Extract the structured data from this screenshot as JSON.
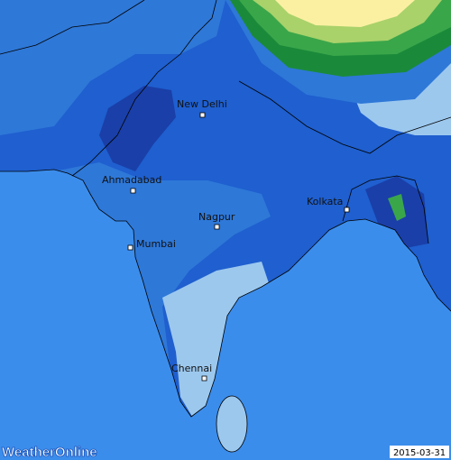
{
  "map": {
    "cities": [
      {
        "name": "New Delhi"
      },
      {
        "name": "Ahmadabad"
      },
      {
        "name": "Nagpur"
      },
      {
        "name": "Mumbai"
      },
      {
        "name": "Kolkata"
      },
      {
        "name": "Chennai"
      }
    ],
    "logo": "WeatherOnline",
    "date": "2015-03-31"
  }
}
